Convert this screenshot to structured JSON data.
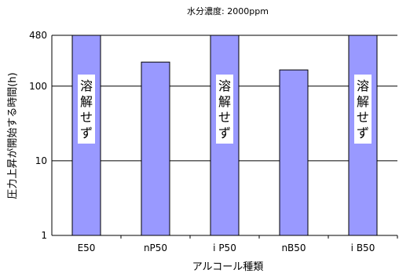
{
  "chart_data": {
    "type": "bar",
    "title": "水分濃度: 2000ppm",
    "xlabel": "アルコール種類",
    "ylabel": "圧力上昇が開始する時間(h)",
    "scale": "log",
    "ylim": [
      1,
      480
    ],
    "yticks": [
      1,
      10,
      100,
      480
    ],
    "ytick_labels": [
      "1",
      "10",
      "100",
      "480"
    ],
    "grid": true,
    "legend": "none",
    "categories": [
      "E50",
      "nP50",
      "i P50",
      "nB50",
      "i B50"
    ],
    "values": [
      480,
      210,
      480,
      165,
      480
    ],
    "annotations": [
      "溶解せず",
      "",
      "溶解せず",
      "",
      "溶解せず"
    ],
    "bar_color": "#9999ff",
    "bar_stroke": "#000000"
  }
}
